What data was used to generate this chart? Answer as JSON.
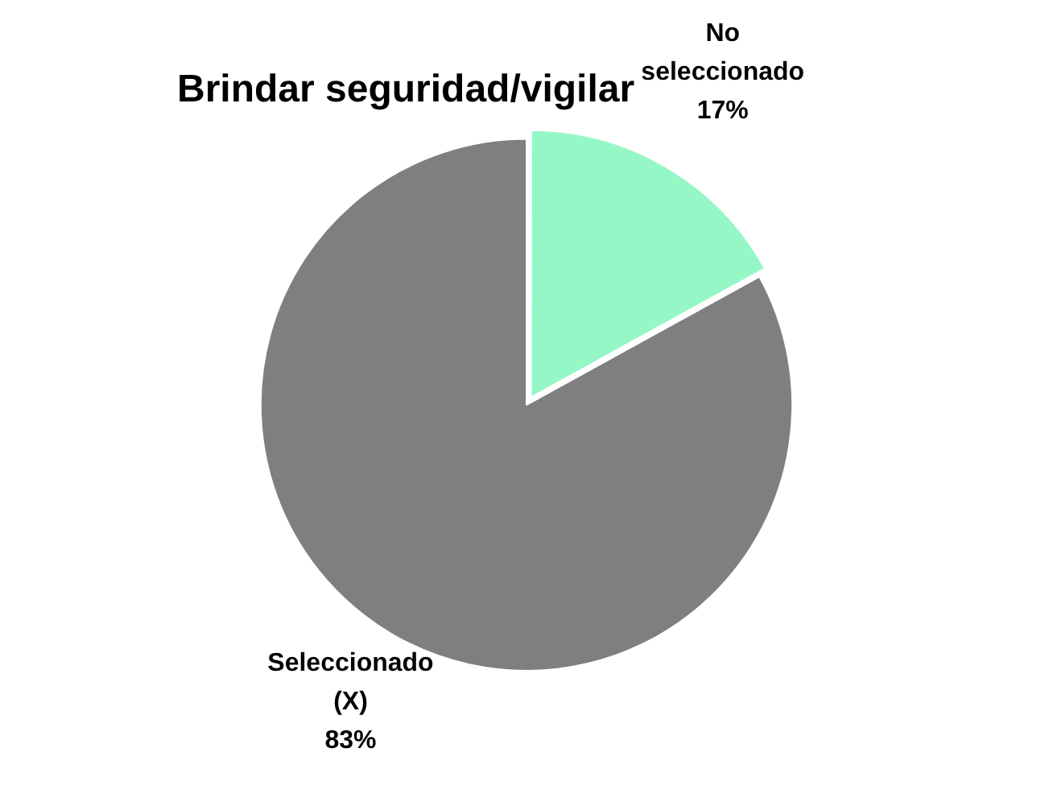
{
  "chart_data": {
    "type": "pie",
    "title": "Brindar seguridad/vigilar",
    "categories": [
      "No seleccionado",
      "Seleccionado (X)"
    ],
    "values": [
      17,
      83
    ],
    "colors": [
      "#96f7c6",
      "#7f7f7f"
    ],
    "value_labels": [
      "17%",
      "83%"
    ],
    "legend": false
  }
}
